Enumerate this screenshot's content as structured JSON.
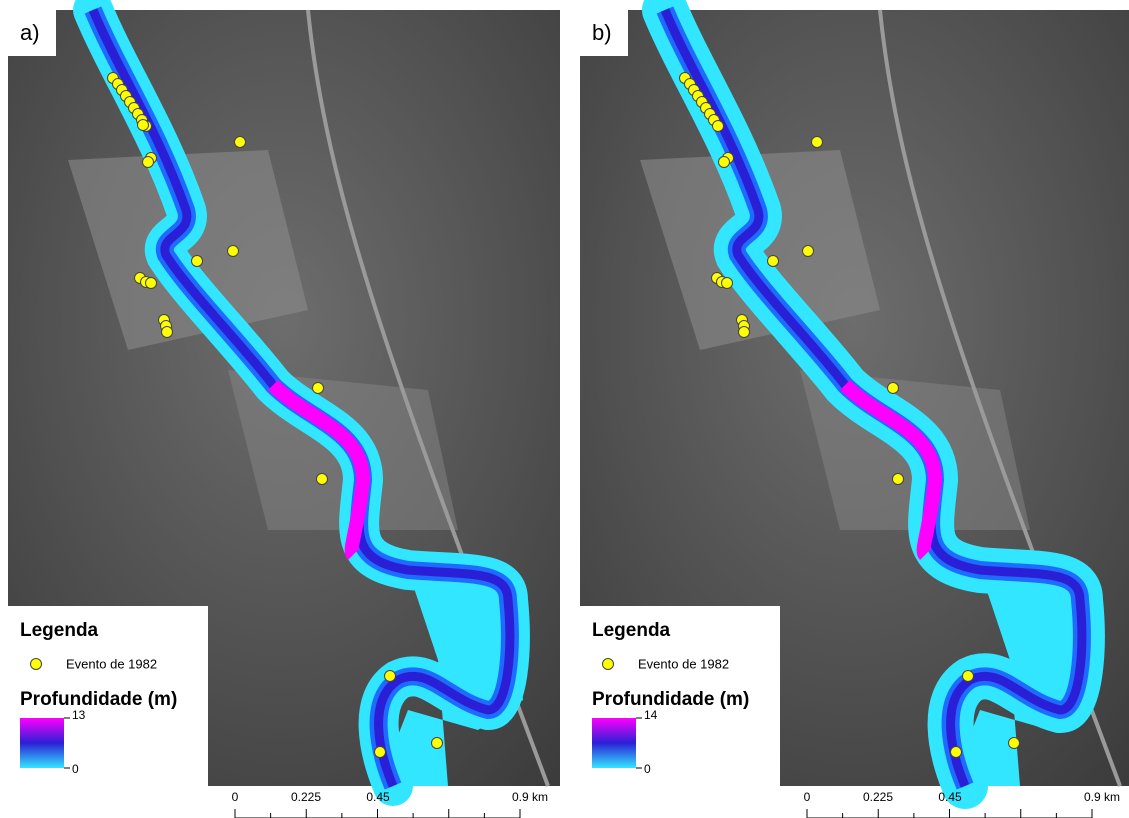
{
  "panels": [
    {
      "label": "a)",
      "legend": {
        "title": "Legenda",
        "event": "Evento de 1982",
        "depth_title": "Profundidade (m)",
        "depth_max": "13",
        "depth_min": "0"
      },
      "scale": [
        "0",
        "0.225",
        "0.45",
        "0.9 km"
      ]
    },
    {
      "label": "b)",
      "legend": {
        "title": "Legenda",
        "event": "Evento de 1982",
        "depth_title": "Profundidade (m)",
        "depth_max": "14",
        "depth_min": "0"
      },
      "scale": [
        "0",
        "0.225",
        "0.45",
        "0.9 km"
      ]
    }
  ]
}
